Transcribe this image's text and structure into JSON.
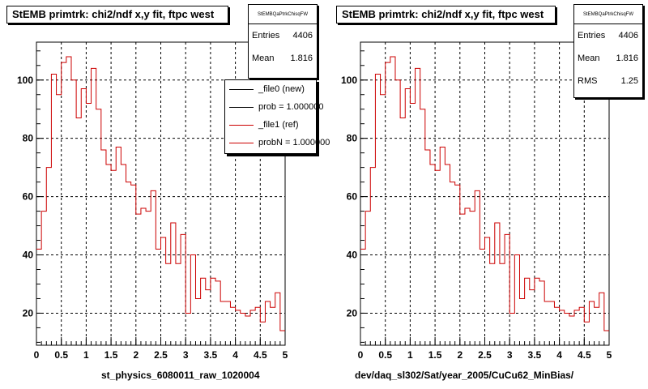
{
  "chart_data": [
    {
      "type": "histogram",
      "title": "StEMB primtrk: chi2/ndf x,y fit, ftpc west",
      "xlabel": "st_physics_6080011_raw_1020004",
      "ylabel": "",
      "xlim": [
        0,
        5
      ],
      "ylim": [
        9,
        113
      ],
      "xticks": [
        "0",
        "0.5",
        "1",
        "1.5",
        "2",
        "2.5",
        "3",
        "3.5",
        "4",
        "4.5",
        "5"
      ],
      "yticks": [
        "20",
        "40",
        "60",
        "80",
        "100"
      ],
      "grid": true,
      "bin_width": 0.1,
      "x": [
        0.05,
        0.15,
        0.25,
        0.35,
        0.45,
        0.55,
        0.65,
        0.75,
        0.85,
        0.95,
        1.05,
        1.15,
        1.25,
        1.35,
        1.45,
        1.55,
        1.65,
        1.75,
        1.85,
        1.95,
        2.05,
        2.15,
        2.25,
        2.35,
        2.45,
        2.55,
        2.65,
        2.75,
        2.85,
        2.95,
        3.05,
        3.15,
        3.25,
        3.35,
        3.45,
        3.55,
        3.65,
        3.75,
        3.85,
        3.95,
        4.05,
        4.15,
        4.25,
        4.35,
        4.45,
        4.55,
        4.65,
        4.75,
        4.85,
        4.95
      ],
      "series": [
        {
          "name": "_file1 (ref)",
          "color": "#cc0000",
          "values": [
            42,
            55,
            70,
            102,
            95,
            106,
            108,
            100,
            87,
            97,
            92,
            104,
            90,
            76,
            71,
            69,
            77,
            71,
            65,
            64,
            54,
            56,
            55,
            62,
            42,
            46,
            37,
            51,
            37,
            47,
            20,
            40,
            25,
            32,
            28,
            32,
            31,
            24,
            24,
            22,
            21,
            20,
            19,
            21,
            22,
            17,
            24,
            22,
            27,
            14
          ]
        }
      ],
      "stats": {
        "name": "StEMBQaPtrkChisqFW",
        "rows": [
          {
            "label": "Entries",
            "value": "4406"
          },
          {
            "label": "Mean",
            "value": "1.816"
          }
        ]
      },
      "legend": {
        "position": "top-right",
        "entries": [
          {
            "label": "_file0 (new)",
            "color": "#000000"
          },
          {
            "label": "prob = 1.000000",
            "color": "#000000"
          },
          {
            "label": "_file1 (ref)",
            "color": "#cc0000"
          },
          {
            "label": "probN = 1.000000",
            "color": "#cc0000"
          }
        ]
      }
    },
    {
      "type": "histogram",
      "title": "StEMB primtrk: chi2/ndf x,y fit, ftpc west",
      "xlabel": "dev/daq_sl302/Sat/year_2005/CuCu62_MinBias/",
      "ylabel": "",
      "xlim": [
        0,
        5
      ],
      "ylim": [
        9,
        113
      ],
      "xticks": [
        "0",
        "0.5",
        "1",
        "1.5",
        "2",
        "2.5",
        "3",
        "3.5",
        "4",
        "4.5",
        "5"
      ],
      "yticks": [
        "20",
        "40",
        "60",
        "80",
        "100"
      ],
      "grid": true,
      "bin_width": 0.1,
      "x": [
        0.05,
        0.15,
        0.25,
        0.35,
        0.45,
        0.55,
        0.65,
        0.75,
        0.85,
        0.95,
        1.05,
        1.15,
        1.25,
        1.35,
        1.45,
        1.55,
        1.65,
        1.75,
        1.85,
        1.95,
        2.05,
        2.15,
        2.25,
        2.35,
        2.45,
        2.55,
        2.65,
        2.75,
        2.85,
        2.95,
        3.05,
        3.15,
        3.25,
        3.35,
        3.45,
        3.55,
        3.65,
        3.75,
        3.85,
        3.95,
        4.05,
        4.15,
        4.25,
        4.35,
        4.45,
        4.55,
        4.65,
        4.75,
        4.85,
        4.95
      ],
      "series": [
        {
          "color": "#cc0000",
          "values": [
            42,
            55,
            70,
            102,
            95,
            106,
            108,
            100,
            87,
            97,
            92,
            104,
            90,
            76,
            71,
            69,
            77,
            71,
            65,
            64,
            54,
            56,
            55,
            62,
            42,
            46,
            37,
            51,
            37,
            47,
            20,
            40,
            25,
            32,
            28,
            32,
            31,
            24,
            24,
            22,
            21,
            20,
            19,
            21,
            22,
            17,
            24,
            22,
            27,
            14
          ]
        }
      ],
      "stats": {
        "name": "StEMBQaPtrkChisqFW",
        "rows": [
          {
            "label": "Entries",
            "value": "4406"
          },
          {
            "label": "Mean",
            "value": "1.816"
          },
          {
            "label": "RMS",
            "value": "1.25"
          }
        ]
      }
    }
  ]
}
